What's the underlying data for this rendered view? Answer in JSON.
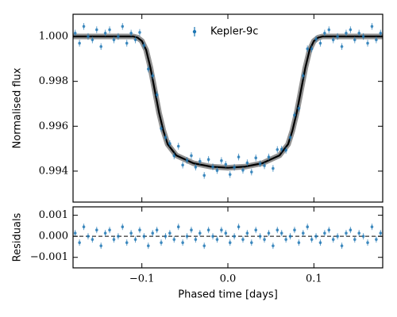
{
  "chart_data": [
    {
      "type": "scatter",
      "ylabel": "Normalised flux",
      "xlim": [
        -0.18,
        0.18
      ],
      "xticks": [
        -0.1,
        0,
        0.1
      ],
      "ylim": [
        0.99262,
        1.00099
      ],
      "yticks": [
        {
          "value": 1.0,
          "label": "1.000"
        },
        {
          "value": 0.998,
          "label": "0.998"
        },
        {
          "value": 0.996,
          "label": "0.996"
        },
        {
          "value": 0.994,
          "label": "0.994"
        }
      ],
      "legend": "upper center",
      "series": [
        {
          "name": "Kepler-9c",
          "color": "#1f77b4",
          "yerr": 0.00015,
          "x": [
            -0.1775,
            -0.1725,
            -0.1675,
            -0.1625,
            -0.1575,
            -0.1525,
            -0.1475,
            -0.1425,
            -0.1375,
            -0.1325,
            -0.1275,
            -0.1225,
            -0.1175,
            -0.1125,
            -0.1075,
            -0.1025,
            -0.0975,
            -0.0925,
            -0.0875,
            -0.0825,
            -0.0775,
            -0.0725,
            -0.0675,
            -0.0625,
            -0.0575,
            -0.0525,
            -0.0475,
            -0.0425,
            -0.0375,
            -0.0325,
            -0.0275,
            -0.0225,
            -0.0175,
            -0.0125,
            -0.0075,
            -0.0025,
            0.0025,
            0.0075,
            0.0125,
            0.0175,
            0.0225,
            0.0275,
            0.0325,
            0.0375,
            0.0425,
            0.0475,
            0.0525,
            0.0575,
            0.0625,
            0.0675,
            0.0725,
            0.0775,
            0.0825,
            0.0875,
            0.0925,
            0.0975,
            0.1025,
            0.1075,
            0.1125,
            0.1175,
            0.1225,
            0.1275,
            0.1325,
            0.1375,
            0.1425,
            0.1475,
            0.1525,
            0.1575,
            0.1625,
            0.1675,
            0.1725,
            0.1775
          ],
          "values": [
            1.00015,
            0.9997,
            1.00045,
            1.0,
            0.99985,
            1.0003,
            0.99955,
            1.00015,
            1.0003,
            0.99985,
            1.0,
            1.00045,
            0.9997,
            1.00015,
            0.99985,
            1.00018,
            0.9996,
            0.99855,
            0.99825,
            0.9974,
            0.9959,
            0.9955,
            0.99523,
            0.99468,
            0.99511,
            0.99427,
            0.99448,
            0.99469,
            0.99418,
            0.99444,
            0.99381,
            0.99452,
            0.99419,
            0.99403,
            0.99447,
            0.9943,
            0.99385,
            0.99417,
            0.99463,
            0.99404,
            0.99437,
            0.99396,
            0.99459,
            0.99433,
            0.99424,
            0.99463,
            0.99412,
            0.99496,
            0.99498,
            0.99493,
            0.9955,
            0.9965,
            0.9968,
            0.99825,
            0.99945,
            0.99945,
            0.99988,
            0.9997,
            1.00015,
            1.0003,
            0.99985,
            1.0,
            0.99955,
            1.00015,
            1.0003,
            0.99985,
            1.00015,
            1.0,
            0.9997,
            1.00045,
            0.99985,
            1.00015
          ]
        }
      ],
      "model": {
        "color": "#000000",
        "x": [
          -0.18,
          -0.11,
          -0.105,
          -0.1,
          -0.095,
          -0.09,
          -0.085,
          -0.08,
          -0.075,
          -0.07,
          -0.06,
          -0.04,
          -0.02,
          0,
          0.02,
          0.04,
          0.06,
          0.07,
          0.075,
          0.08,
          0.085,
          0.09,
          0.095,
          0.1,
          0.105,
          0.11,
          0.18
        ],
        "values": [
          1.0,
          1.0,
          0.99995,
          0.9998,
          0.9994,
          0.9986,
          0.9976,
          0.9966,
          0.9958,
          0.9952,
          0.9947,
          0.99435,
          0.9942,
          0.99415,
          0.9942,
          0.99435,
          0.9947,
          0.9952,
          0.9958,
          0.9966,
          0.9976,
          0.9986,
          0.9994,
          0.9998,
          0.99995,
          1.0,
          1.0
        ]
      }
    },
    {
      "type": "scatter",
      "ylabel": "Residuals",
      "xlabel": "Phased time [days]",
      "xlim": [
        -0.18,
        0.18
      ],
      "xticks": [
        {
          "value": -0.1,
          "label": "−0.1"
        },
        {
          "value": 0,
          "label": "0.0"
        },
        {
          "value": 0.1,
          "label": "0.1"
        }
      ],
      "ylim": [
        -0.0015,
        0.0014
      ],
      "yticks": [
        {
          "value": 0.001,
          "label": "0.001"
        },
        {
          "value": 0,
          "label": "0.000"
        },
        {
          "value": -0.001,
          "label": "−0.001"
        }
      ],
      "reference_line": 0,
      "series": [
        {
          "color": "#1f77b4",
          "yerr": 0.00015,
          "x": [
            -0.1775,
            -0.1725,
            -0.1675,
            -0.1625,
            -0.1575,
            -0.1525,
            -0.1475,
            -0.1425,
            -0.1375,
            -0.1325,
            -0.1275,
            -0.1225,
            -0.1175,
            -0.1125,
            -0.1075,
            -0.1025,
            -0.0975,
            -0.0925,
            -0.0875,
            -0.0825,
            -0.0775,
            -0.0725,
            -0.0675,
            -0.0625,
            -0.0575,
            -0.0525,
            -0.0475,
            -0.0425,
            -0.0375,
            -0.0325,
            -0.0275,
            -0.0225,
            -0.0175,
            -0.0125,
            -0.0075,
            -0.0025,
            0.0025,
            0.0075,
            0.0125,
            0.0175,
            0.0225,
            0.0275,
            0.0325,
            0.0375,
            0.0425,
            0.0475,
            0.0525,
            0.0575,
            0.0625,
            0.0675,
            0.0725,
            0.0775,
            0.0825,
            0.0875,
            0.0925,
            0.0975,
            0.1025,
            0.1075,
            0.1125,
            0.1175,
            0.1225,
            0.1275,
            0.1325,
            0.1375,
            0.1425,
            0.1475,
            0.1525,
            0.1575,
            0.1625,
            0.1675,
            0.1725,
            0.1775
          ],
          "values": [
            0.00015,
            -0.0003,
            0.00045,
            0,
            -0.00015,
            0.0003,
            -0.00045,
            0.00015,
            0.0003,
            -0.00015,
            0,
            0.00045,
            -0.0003,
            0.00015,
            -0.00015,
            0.0003,
            0,
            -0.00045,
            0.00015,
            0.0003,
            -0.0003,
            0,
            0.00015,
            -0.00015,
            0.00045,
            -0.0003,
            0,
            0.0003,
            -0.00015,
            0.00015,
            -0.00045,
            0.0003,
            0,
            -0.00015,
            0.0003,
            0.00015,
            -0.0003,
            0,
            0.00045,
            -0.00015,
            0.00015,
            -0.0003,
            0.0003,
            0,
            -0.00015,
            0.00015,
            -0.00045,
            0.0003,
            0.00015,
            -0.00015,
            0,
            0.0003,
            -0.0003,
            0.00015,
            0.00045,
            -0.00015,
            0,
            -0.0003,
            0.00015,
            0.0003,
            -0.00015,
            0,
            -0.00045,
            0.00015,
            0.0003,
            -0.00015,
            0.00015,
            0,
            -0.0003,
            0.00045,
            -0.00015,
            0.00015
          ]
        }
      ]
    }
  ]
}
